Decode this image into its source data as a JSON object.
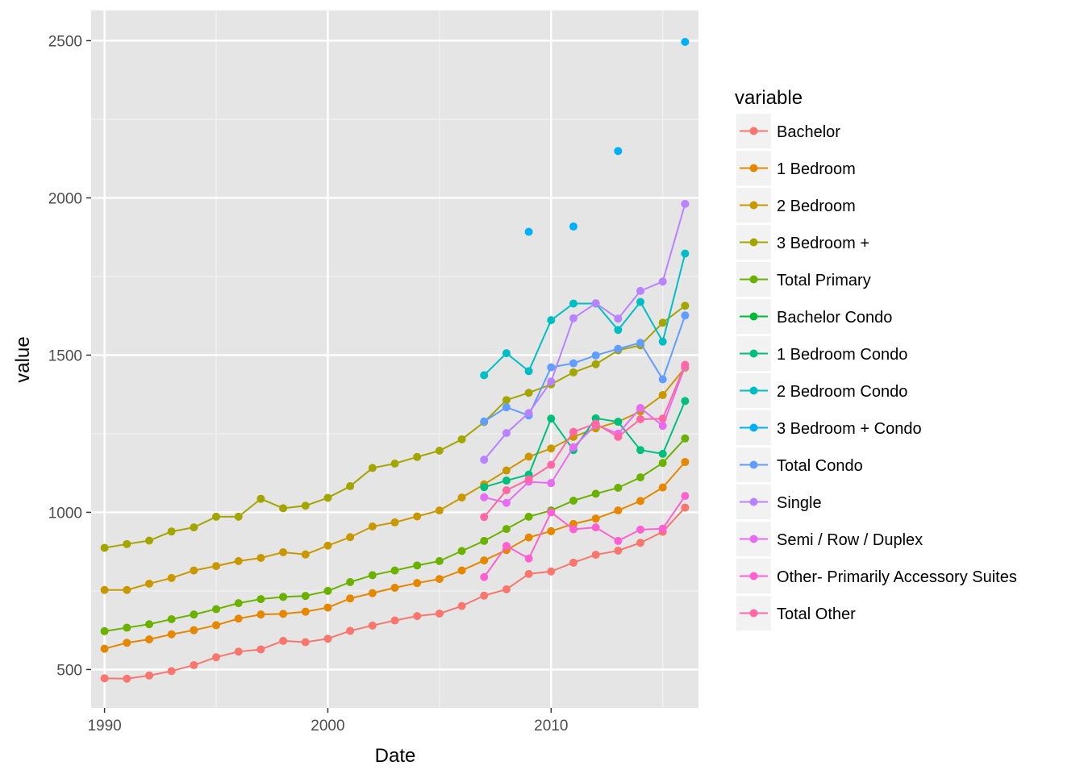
{
  "chart_data": {
    "type": "line",
    "xlabel": "Date",
    "ylabel": "value",
    "xlim": [
      1989.4,
      2016.6
    ],
    "ylim": [
      378,
      2596
    ],
    "x_ticks": [
      1990,
      2000,
      2010
    ],
    "y_ticks": [
      500,
      1000,
      1500,
      2000,
      2500
    ],
    "x_tick_labels": [
      "1990",
      "2000",
      "2010"
    ],
    "y_tick_labels": [
      "500",
      "1000",
      "1500",
      "2000",
      "2500"
    ],
    "grid": true,
    "panel_background": "#e5e5e5",
    "legend": {
      "title": "variable",
      "position": "right"
    },
    "series": [
      {
        "name": "Bachelor",
        "color": "#F8766D",
        "x": [
          1990,
          1991,
          1992,
          1993,
          1994,
          1995,
          1996,
          1997,
          1998,
          1999,
          2000,
          2001,
          2002,
          2003,
          2004,
          2005,
          2006,
          2007,
          2008,
          2009,
          2010,
          2011,
          2012,
          2013,
          2014,
          2015,
          2016
        ],
        "y": [
          472,
          471,
          481,
          495,
          514,
          539,
          557,
          564,
          591,
          587,
          598,
          623,
          640,
          656,
          670,
          678,
          702,
          735,
          755,
          804,
          812,
          840,
          865,
          878,
          903,
          938,
          1015
        ]
      },
      {
        "name": "1 Bedroom",
        "color": "#E58700",
        "x": [
          1990,
          1991,
          1992,
          1993,
          1994,
          1995,
          1996,
          1997,
          1998,
          1999,
          2000,
          2001,
          2002,
          2003,
          2004,
          2005,
          2006,
          2007,
          2008,
          2009,
          2010,
          2011,
          2012,
          2013,
          2014,
          2015,
          2016
        ],
        "y": [
          566,
          585,
          596,
          612,
          625,
          641,
          662,
          675,
          677,
          684,
          697,
          726,
          743,
          760,
          775,
          788,
          815,
          847,
          880,
          920,
          940,
          963,
          980,
          1006,
          1036,
          1079,
          1160
        ]
      },
      {
        "name": "2 Bedroom",
        "color": "#C99800",
        "x": [
          1990,
          1991,
          1992,
          1993,
          1994,
          1995,
          1996,
          1997,
          1998,
          1999,
          2000,
          2001,
          2002,
          2003,
          2004,
          2005,
          2006,
          2007,
          2008,
          2009,
          2010,
          2011,
          2012,
          2013,
          2014,
          2015,
          2016
        ],
        "y": [
          753,
          753,
          773,
          791,
          815,
          829,
          845,
          855,
          873,
          866,
          894,
          921,
          955,
          968,
          987,
          1006,
          1047,
          1089,
          1133,
          1177,
          1203,
          1240,
          1267,
          1288,
          1321,
          1373,
          1460
        ]
      },
      {
        "name": "3 Bedroom +",
        "color": "#A3A500",
        "x": [
          1990,
          1991,
          1992,
          1993,
          1994,
          1995,
          1996,
          1997,
          1998,
          1999,
          2000,
          2001,
          2002,
          2003,
          2004,
          2005,
          2006,
          2007,
          2008,
          2009,
          2010,
          2011,
          2012,
          2013,
          2014,
          2015,
          2016
        ],
        "y": [
          887,
          899,
          910,
          939,
          952,
          986,
          986,
          1043,
          1013,
          1021,
          1046,
          1083,
          1141,
          1155,
          1176,
          1196,
          1232,
          1287,
          1357,
          1380,
          1407,
          1445,
          1471,
          1515,
          1531,
          1603,
          1657
        ]
      },
      {
        "name": "Total Primary",
        "color": "#6BB100",
        "x": [
          1990,
          1991,
          1992,
          1993,
          1994,
          1995,
          1996,
          1997,
          1998,
          1999,
          2000,
          2001,
          2002,
          2003,
          2004,
          2005,
          2006,
          2007,
          2008,
          2009,
          2010,
          2011,
          2012,
          2013,
          2014,
          2015,
          2016
        ],
        "y": [
          622,
          633,
          644,
          660,
          675,
          692,
          711,
          724,
          731,
          734,
          750,
          778,
          800,
          815,
          831,
          845,
          877,
          909,
          947,
          986,
          1006,
          1037,
          1059,
          1078,
          1111,
          1157,
          1235
        ]
      },
      {
        "name": "Bachelor Condo",
        "color": "#00BA38",
        "x": [],
        "y": []
      },
      {
        "name": "1 Bedroom Condo",
        "color": "#00BF7D",
        "x": [
          2007,
          2008,
          2009,
          2010,
          2011,
          2012,
          2013,
          2014,
          2015,
          2016
        ],
        "y": [
          1080,
          1101,
          1120,
          1298,
          1198,
          1299,
          1288,
          1198,
          1186,
          1354
        ]
      },
      {
        "name": "2 Bedroom Condo",
        "color": "#00BFC4",
        "x": [
          2007,
          2008,
          2009,
          2010,
          2011,
          2012,
          2013,
          2014,
          2015,
          2016
        ],
        "y": [
          1436,
          1506,
          1449,
          1611,
          1664,
          1664,
          1580,
          1669,
          1543,
          1823
        ]
      },
      {
        "name": "3 Bedroom + Condo",
        "color": "#00B0F6",
        "x": [
          2009,
          2011,
          2013,
          2016
        ],
        "y": [
          1892,
          1909,
          2149,
          2496
        ]
      },
      {
        "name": "Total Condo",
        "color": "#619CFF",
        "x": [
          2007,
          2008,
          2009,
          2010,
          2011,
          2012,
          2013,
          2014,
          2015,
          2016
        ],
        "y": [
          1289,
          1334,
          1308,
          1461,
          1474,
          1499,
          1520,
          1539,
          1423,
          1626
        ]
      },
      {
        "name": "Single",
        "color": "#B983FF",
        "x": [
          2007,
          2008,
          2009,
          2010,
          2011,
          2012,
          2013,
          2014,
          2015,
          2016
        ],
        "y": [
          1167,
          1252,
          1316,
          1416,
          1617,
          1665,
          1616,
          1704,
          1734,
          1981
        ]
      },
      {
        "name": "Semi / Row / Duplex",
        "color": "#E76BF3",
        "x": [
          2007,
          2008,
          2009,
          2010,
          2011,
          2012,
          2013,
          2014,
          2015,
          2016
        ],
        "y": [
          1048,
          1030,
          1097,
          1093,
          1207,
          1278,
          1250,
          1332,
          1275,
          1464
        ]
      },
      {
        "name": "Other- Primarily Accessory Suites",
        "color": "#FD61D1",
        "x": [
          2007,
          2008,
          2009,
          2010,
          2011,
          2012,
          2013,
          2014,
          2015,
          2016
        ],
        "y": [
          794,
          893,
          853,
          1000,
          946,
          952,
          909,
          945,
          948,
          1052
        ]
      },
      {
        "name": "Total Other",
        "color": "#FF67A4",
        "x": [
          2007,
          2008,
          2009,
          2010,
          2011,
          2012,
          2013,
          2014,
          2015,
          2016
        ],
        "y": [
          985,
          1070,
          1105,
          1151,
          1256,
          1282,
          1240,
          1296,
          1298,
          1469
        ]
      }
    ]
  }
}
